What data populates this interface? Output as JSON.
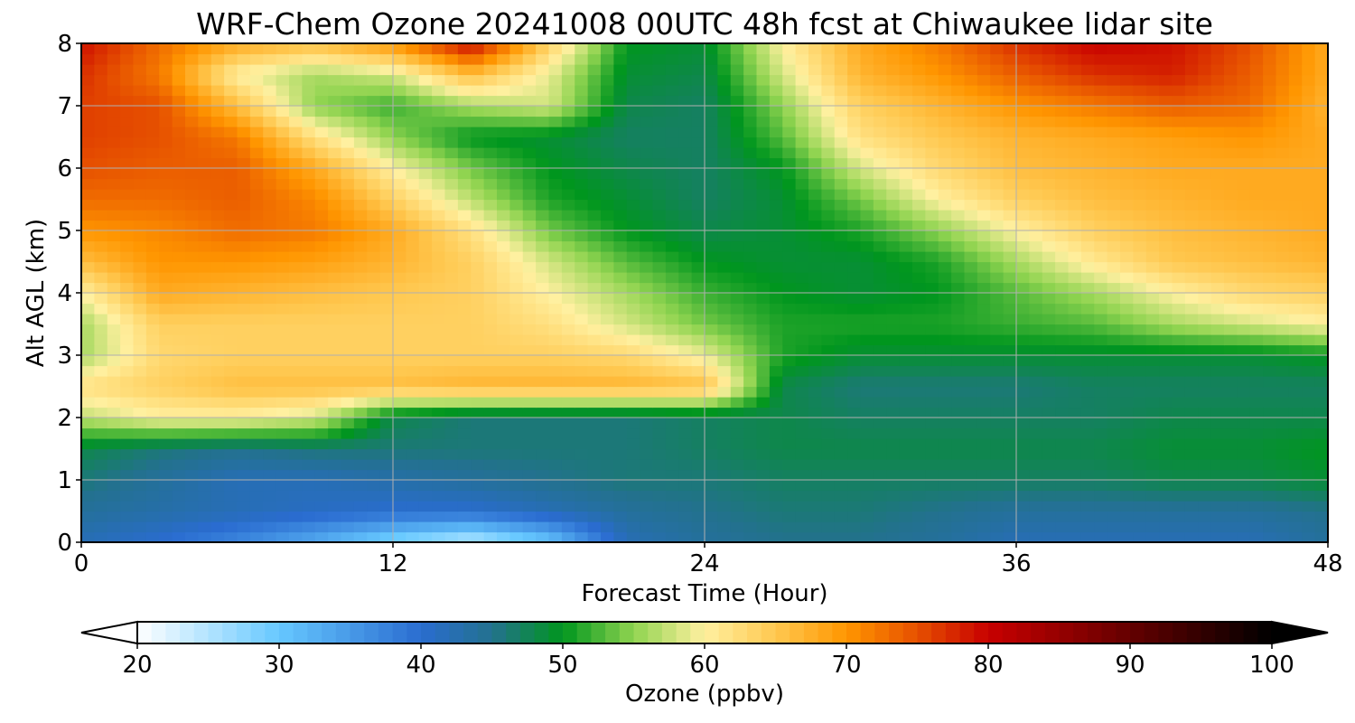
{
  "chart_data": {
    "type": "heatmap",
    "title": "WRF-Chem Ozone  20241008 00UTC 48h fcst at Chiwaukee lidar site",
    "xlabel": "Forecast Time (Hour)",
    "ylabel": "Alt AGL (km)",
    "xlim": [
      0,
      48
    ],
    "ylim": [
      0,
      8
    ],
    "xticks": [
      "0",
      "12",
      "24",
      "36",
      "48"
    ],
    "yticks": [
      "0",
      "1",
      "2",
      "3",
      "4",
      "5",
      "6",
      "7",
      "8"
    ],
    "grid": true,
    "x_hours": [
      0,
      3,
      6,
      9,
      12,
      15,
      18,
      21,
      24,
      27,
      30,
      33,
      36,
      39,
      42,
      45,
      48
    ],
    "y_km": [
      0,
      0.5,
      1,
      1.5,
      2,
      2.5,
      3,
      3.5,
      4,
      4.5,
      5,
      5.5,
      6,
      6.5,
      7,
      7.5,
      8
    ],
    "z_ozone_ppbv": [
      [
        42,
        40,
        37,
        33,
        28,
        24,
        30,
        42,
        44,
        45,
        45,
        44,
        42,
        42,
        42,
        42,
        44
      ],
      [
        44,
        43,
        42,
        41,
        40,
        40,
        42,
        44,
        45,
        46,
        46,
        45,
        44,
        44,
        44,
        44,
        45
      ],
      [
        46,
        44,
        42,
        42,
        43,
        44,
        45,
        46,
        46,
        47,
        47,
        47,
        47,
        47,
        48,
        48,
        49
      ],
      [
        48,
        46,
        45,
        46,
        46,
        46,
        46,
        46,
        47,
        48,
        48,
        48,
        48,
        48,
        49,
        49,
        50
      ],
      [
        57,
        60,
        60,
        58,
        48,
        46,
        46,
        46,
        47,
        48,
        47,
        47,
        47,
        47,
        48,
        48,
        48
      ],
      [
        62,
        64,
        66,
        66,
        66,
        67,
        67,
        67,
        66,
        48,
        46,
        46,
        46,
        47,
        47,
        47,
        47
      ],
      [
        56,
        63,
        64,
        64,
        64,
        64,
        64,
        63,
        59,
        51,
        49,
        49,
        49,
        49,
        49,
        49,
        50
      ],
      [
        56,
        64,
        64,
        64,
        64,
        64,
        62,
        58,
        54,
        51,
        51,
        51,
        52,
        53,
        56,
        58,
        60
      ],
      [
        60,
        68,
        67,
        66,
        65,
        64,
        60,
        56,
        52,
        50,
        49,
        50,
        53,
        56,
        60,
        63,
        64
      ],
      [
        66,
        70,
        70,
        69,
        67,
        64,
        58,
        53,
        50,
        49,
        49,
        51,
        56,
        61,
        65,
        66,
        67
      ],
      [
        70,
        71,
        73,
        72,
        68,
        62,
        54,
        50,
        48,
        49,
        51,
        55,
        60,
        64,
        66,
        67,
        68
      ],
      [
        73,
        73,
        74,
        71,
        64,
        57,
        51,
        49,
        47,
        49,
        54,
        60,
        64,
        66,
        67,
        68,
        68
      ],
      [
        75,
        74,
        74,
        68,
        60,
        54,
        50,
        48,
        47,
        50,
        58,
        63,
        66,
        67,
        68,
        68,
        68
      ],
      [
        76,
        75,
        72,
        62,
        55,
        50,
        49,
        47,
        47,
        53,
        62,
        65,
        67,
        68,
        69,
        70,
        68
      ],
      [
        76,
        75,
        66,
        55,
        52,
        56,
        58,
        48,
        47,
        55,
        64,
        67,
        70,
        72,
        74,
        73,
        67
      ],
      [
        77,
        72,
        60,
        56,
        58,
        66,
        59,
        49,
        48,
        58,
        67,
        70,
        74,
        77,
        78,
        74,
        68
      ],
      [
        79,
        73,
        68,
        66,
        70,
        80,
        64,
        50,
        49,
        60,
        68,
        72,
        77,
        80,
        79,
        75,
        68
      ]
    ],
    "colorbar": {
      "label": "Ozone  (ppbv)",
      "range": [
        20,
        100
      ],
      "ticks": [
        "20",
        "30",
        "40",
        "50",
        "60",
        "70",
        "80",
        "90",
        "100"
      ],
      "extend": "both",
      "stops": [
        {
          "v": 20,
          "c": "#ffffff"
        },
        {
          "v": 30,
          "c": "#66c8ff"
        },
        {
          "v": 40,
          "c": "#2a6cd0"
        },
        {
          "v": 45,
          "c": "#23718e"
        },
        {
          "v": 50,
          "c": "#00961e"
        },
        {
          "v": 55,
          "c": "#90d450"
        },
        {
          "v": 60,
          "c": "#fff0a0"
        },
        {
          "v": 65,
          "c": "#ffc850"
        },
        {
          "v": 70,
          "c": "#ff9600"
        },
        {
          "v": 75,
          "c": "#e65000"
        },
        {
          "v": 80,
          "c": "#c80000"
        },
        {
          "v": 90,
          "c": "#640000"
        },
        {
          "v": 100,
          "c": "#000000"
        }
      ]
    }
  }
}
